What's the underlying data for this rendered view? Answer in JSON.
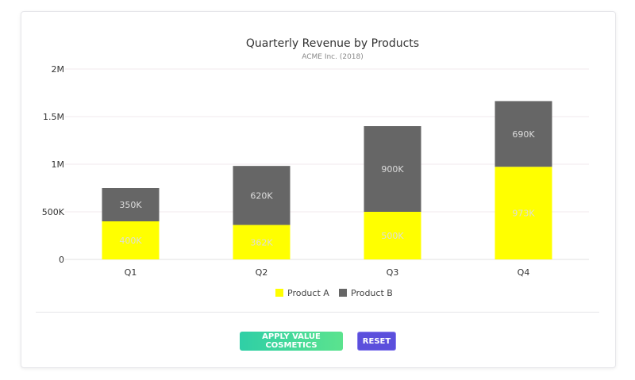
{
  "chart_data": {
    "type": "bar",
    "stacked": true,
    "title": "Quarterly Revenue by Products",
    "subtitle": "ACME Inc. (2018)",
    "categories": [
      "Q1",
      "Q2",
      "Q3",
      "Q4"
    ],
    "series": [
      {
        "name": "Product A",
        "color": "#ffff00",
        "values": [
          400000,
          362000,
          500000,
          973000
        ],
        "labels": [
          "400K",
          "362K",
          "500K",
          "973K"
        ]
      },
      {
        "name": "Product B",
        "color": "#666666",
        "values": [
          350000,
          620000,
          900000,
          690000
        ],
        "labels": [
          "350K",
          "620K",
          "900K",
          "690K"
        ]
      }
    ],
    "yticks": [
      0,
      500000,
      1000000,
      1500000,
      2000000
    ],
    "ytick_labels": [
      "0",
      "500K",
      "1M",
      "1.5M",
      "2M"
    ],
    "ylim": [
      0,
      2000000
    ],
    "grid": true,
    "legend": "bottom"
  },
  "buttons": {
    "apply": "APPLY VALUE COSMETICS",
    "reset": "RESET"
  }
}
